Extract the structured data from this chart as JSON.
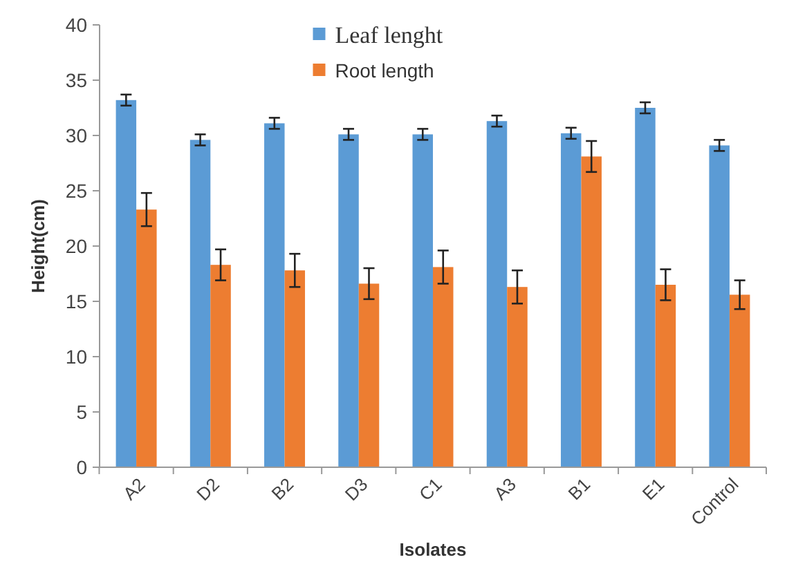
{
  "chart_data": {
    "type": "bar",
    "xlabel": "Isolates",
    "ylabel": "Height(cm)",
    "categories": [
      "A2",
      "D2",
      "B2",
      "D3",
      "C1",
      "A3",
      "B1",
      "E1",
      "Control"
    ],
    "series": [
      {
        "name": "Leaf lenght",
        "color": "#5b9bd5",
        "values": [
          33.2,
          29.6,
          31.1,
          30.1,
          30.1,
          31.3,
          30.2,
          32.5,
          29.1
        ],
        "errors": [
          0.5,
          0.5,
          0.5,
          0.5,
          0.5,
          0.5,
          0.5,
          0.5,
          0.5
        ]
      },
      {
        "name": "Root length",
        "color": "#ed7d31",
        "values": [
          23.3,
          18.3,
          17.8,
          16.6,
          18.1,
          16.3,
          28.1,
          16.5,
          15.6
        ],
        "errors": [
          1.5,
          1.4,
          1.5,
          1.4,
          1.5,
          1.5,
          1.4,
          1.4,
          1.3
        ]
      }
    ],
    "ylim": [
      0,
      40
    ],
    "yticks": [
      0,
      5,
      10,
      15,
      20,
      25,
      30,
      35,
      40
    ],
    "grid": false,
    "legend": "top"
  }
}
